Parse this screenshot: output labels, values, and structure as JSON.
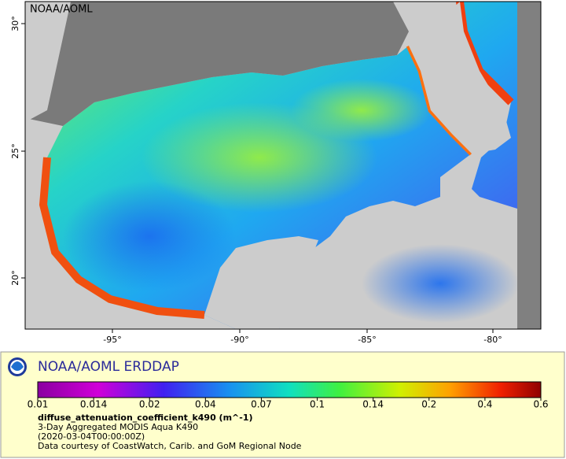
{
  "map": {
    "watermark": "NOAA/AOML",
    "lat_ticks": [
      "30°",
      "25°",
      "20°"
    ],
    "lon_ticks": [
      "-95°",
      "-90°",
      "-85°",
      "-80°"
    ]
  },
  "legend": {
    "title": "NOAA/AOML ERDDAP",
    "colorbar_ticks": [
      "0.01",
      "0.014",
      "0.02",
      "0.04",
      "0.07",
      "0.1",
      "0.14",
      "0.2",
      "0.4",
      "0.6"
    ],
    "variable": "diffuse_attenuation_coefficient_k490 (m^-1)",
    "lines": [
      "3-Day Aggregated MODIS Aqua K490",
      "(2020-03-04T00:00:00Z)",
      "Data courtesy of CoastWatch, Carib. and GoM Regional Node"
    ]
  }
}
